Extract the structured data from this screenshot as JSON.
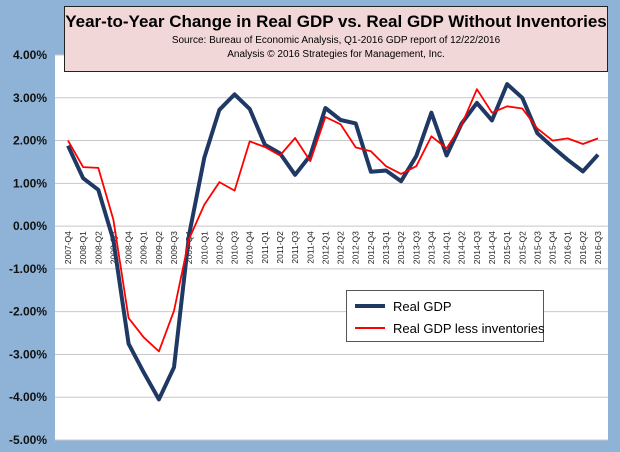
{
  "chart_data": {
    "type": "line",
    "title": "Year-to-Year Change in Real GDP vs. Real GDP Without Inventories",
    "subtitle_lines": [
      "Source: Bureau of Economic Analysis, Q1-2016 GDP report of 12/22/2016",
      "Analysis © 2016 Strategies for Management, Inc."
    ],
    "x": [
      "2007-Q4",
      "2008-Q1",
      "2008-Q2",
      "2008-Q3",
      "2008-Q4",
      "2009-Q1",
      "2009-Q2",
      "2009-Q3",
      "2009-Q4",
      "2010-Q1",
      "2010-Q2",
      "2010-Q3",
      "2010-Q4",
      "2011-Q1",
      "2011-Q2",
      "2011-Q3",
      "2011-Q4",
      "2012-Q1",
      "2012-Q2",
      "2012-Q3",
      "2012-Q4",
      "2013-Q1",
      "2013-Q2",
      "2013-Q3",
      "2013-Q4",
      "2014-Q1",
      "2014-Q2",
      "2014-Q3",
      "2014-Q4",
      "2015-Q1",
      "2015-Q2",
      "2015-Q3",
      "2015-Q4",
      "2016-Q1",
      "2016-Q2",
      "2016-Q3"
    ],
    "series": [
      {
        "name": "Real GDP",
        "color": "#1f3864",
        "values": [
          1.88,
          1.12,
          0.85,
          -0.33,
          -2.75,
          -3.42,
          -4.05,
          -3.3,
          -0.2,
          1.6,
          2.72,
          3.08,
          2.74,
          1.9,
          1.7,
          1.2,
          1.65,
          2.76,
          2.48,
          2.4,
          1.27,
          1.3,
          1.05,
          1.64,
          2.65,
          1.65,
          2.4,
          2.88,
          2.47,
          3.32,
          3.0,
          2.17,
          1.85,
          1.55,
          1.28,
          1.67
        ]
      },
      {
        "name": "Real GDP less inventories",
        "color": "#ff0000",
        "values": [
          2.0,
          1.38,
          1.36,
          0.15,
          -2.15,
          -2.6,
          -2.93,
          -1.98,
          -0.3,
          0.5,
          1.03,
          0.83,
          1.98,
          1.85,
          1.65,
          2.06,
          1.52,
          2.55,
          2.38,
          1.84,
          1.75,
          1.4,
          1.22,
          1.4,
          2.1,
          1.82,
          2.37,
          3.2,
          2.65,
          2.8,
          2.75,
          2.28,
          2.0,
          2.05,
          1.92,
          2.05
        ]
      }
    ],
    "ylim": [
      -5,
      4
    ],
    "y_ticks": [
      "-5.00%",
      "-4.00%",
      "-3.00%",
      "-2.00%",
      "-1.00%",
      "0.00%",
      "1.00%",
      "2.00%",
      "3.00%",
      "4.00%"
    ],
    "y_tick_values": [
      -5,
      -4,
      -3,
      -2,
      -1,
      0,
      1,
      2,
      3,
      4
    ],
    "grid": true,
    "legend_position": "center-right",
    "colors": {
      "plot_background": "#ffffff",
      "outer_background": "#8fb3d6",
      "title_background": "#f2d7d8"
    }
  }
}
